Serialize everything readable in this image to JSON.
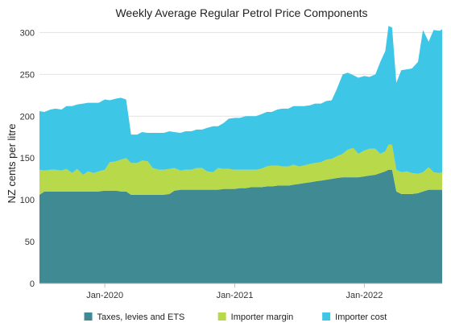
{
  "chart_data": {
    "type": "area",
    "stacked": true,
    "title": "Weekly Average Regular Petrol Price Components",
    "ylabel": "NZ cents per litre",
    "xlabel": "",
    "ylim": [
      0,
      310
    ],
    "yticks": [
      0,
      50,
      100,
      150,
      200,
      250,
      300
    ],
    "xlim": [
      "2019-07-01",
      "2022-08-08"
    ],
    "xticks": [
      {
        "date": "2020-01-01",
        "label": "Jan-2020"
      },
      {
        "date": "2021-01-01",
        "label": "Jan-2021"
      },
      {
        "date": "2022-01-01",
        "label": "Jan-2022"
      }
    ],
    "grid": "horizontal",
    "legend_position": "bottom",
    "x": [
      "2019-07-01",
      "2019-07-15",
      "2019-08-01",
      "2019-08-15",
      "2019-09-01",
      "2019-09-15",
      "2019-10-01",
      "2019-10-15",
      "2019-11-01",
      "2019-11-15",
      "2019-12-01",
      "2019-12-15",
      "2020-01-01",
      "2020-01-15",
      "2020-02-01",
      "2020-02-15",
      "2020-03-01",
      "2020-03-15",
      "2020-04-01",
      "2020-04-15",
      "2020-05-01",
      "2020-05-15",
      "2020-06-01",
      "2020-06-15",
      "2020-07-01",
      "2020-07-15",
      "2020-08-01",
      "2020-08-15",
      "2020-09-01",
      "2020-09-15",
      "2020-10-01",
      "2020-10-15",
      "2020-11-01",
      "2020-11-15",
      "2020-12-01",
      "2020-12-15",
      "2021-01-01",
      "2021-01-15",
      "2021-02-01",
      "2021-02-15",
      "2021-03-01",
      "2021-03-15",
      "2021-04-01",
      "2021-04-15",
      "2021-05-01",
      "2021-05-15",
      "2021-06-01",
      "2021-06-15",
      "2021-07-01",
      "2021-07-15",
      "2021-08-01",
      "2021-08-15",
      "2021-09-01",
      "2021-09-15",
      "2021-10-01",
      "2021-10-15",
      "2021-11-01",
      "2021-11-15",
      "2021-12-01",
      "2021-12-15",
      "2022-01-01",
      "2022-01-15",
      "2022-02-01",
      "2022-02-15",
      "2022-03-01",
      "2022-03-10",
      "2022-03-20",
      "2022-04-01",
      "2022-04-15",
      "2022-05-01",
      "2022-05-15",
      "2022-06-01",
      "2022-06-15",
      "2022-07-01",
      "2022-07-15",
      "2022-08-01",
      "2022-08-08"
    ],
    "series": [
      {
        "name": "Taxes, levies and ETS",
        "color": "#3f8a93",
        "values": [
          106,
          110,
          110,
          110,
          110,
          110,
          110,
          110,
          110,
          110,
          110,
          110,
          111,
          111,
          111,
          110,
          110,
          106,
          106,
          106,
          106,
          106,
          106,
          106,
          107,
          111,
          112,
          112,
          112,
          112,
          112,
          112,
          112,
          112,
          113,
          113,
          113,
          114,
          114,
          115,
          115,
          115,
          116,
          116,
          117,
          117,
          117,
          118,
          119,
          120,
          121,
          122,
          123,
          124,
          125,
          126,
          127,
          127,
          127,
          127,
          128,
          129,
          130,
          132,
          134,
          136,
          136,
          110,
          107,
          107,
          107,
          108,
          110,
          112,
          112,
          112,
          112
        ]
      },
      {
        "name": "Importer margin",
        "color": "#b7d94a",
        "values": [
          30,
          25,
          26,
          26,
          25,
          27,
          22,
          27,
          20,
          24,
          22,
          24,
          25,
          34,
          35,
          38,
          40,
          38,
          38,
          41,
          40,
          32,
          30,
          30,
          30,
          27,
          23,
          24,
          24,
          26,
          26,
          22,
          21,
          26,
          24,
          24,
          23,
          22,
          22,
          21,
          21,
          22,
          24,
          25,
          24,
          23,
          23,
          24,
          21,
          21,
          22,
          22,
          22,
          24,
          24,
          26,
          28,
          33,
          35,
          28,
          31,
          32,
          31,
          23,
          24,
          30,
          30,
          26,
          26,
          27,
          25,
          23,
          23,
          27,
          21,
          20,
          21
        ]
      },
      {
        "name": "Importer cost",
        "color": "#3ec6e6",
        "values": [
          70,
          70,
          72,
          73,
          73,
          75,
          80,
          77,
          85,
          82,
          84,
          82,
          84,
          74,
          75,
          74,
          70,
          34,
          34,
          34,
          34,
          42,
          44,
          44,
          45,
          43,
          45,
          46,
          46,
          46,
          46,
          52,
          55,
          50,
          55,
          60,
          62,
          62,
          64,
          64,
          64,
          65,
          65,
          64,
          67,
          69,
          69,
          70,
          72,
          71,
          70,
          71,
          70,
          70,
          70,
          80,
          95,
          92,
          87,
          91,
          89,
          86,
          89,
          110,
          120,
          142,
          140,
          104,
          122,
          122,
          125,
          134,
          170,
          150,
          170,
          170,
          171
        ]
      }
    ]
  }
}
